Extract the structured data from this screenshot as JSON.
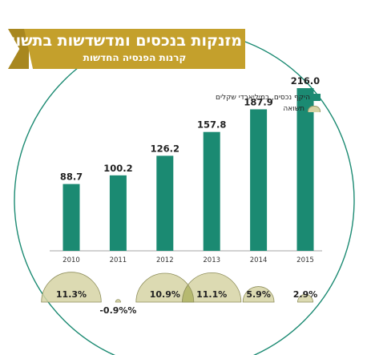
{
  "title": "מזנקות בנכסים ומדשדשות בתשואות",
  "subtitle": "קרנות הפנסיה החדשות",
  "legend": {
    "assets_label": "היקף נכסים, במיליארדי שקלים",
    "return_label": "תשואה"
  },
  "colors": {
    "bar": "#1b8a72",
    "banner": "#c4a02c",
    "circle": "#1b8a72",
    "bubble_fill": "#d6d3a4",
    "bubble_overlap": "#b2b66a"
  },
  "chart_data": {
    "type": "bar",
    "categories": [
      "2010",
      "2011",
      "2012",
      "2013",
      "2014",
      "2015"
    ],
    "series": [
      {
        "name": "היקף נכסים, במיליארדי שקלים",
        "values": [
          88.7,
          100.2,
          126.2,
          157.8,
          187.9,
          216.0
        ],
        "labels": [
          "88.7",
          "100.2",
          "126.2",
          "157.8",
          "187.9",
          "216.0"
        ]
      },
      {
        "name": "תשואה",
        "values": [
          11.3,
          -0.9,
          10.9,
          11.1,
          5.9,
          2.9
        ],
        "labels": [
          "11.3%",
          "-0.9%%",
          "10.9%",
          "11.1%",
          "5.9%",
          "2.9%"
        ]
      }
    ],
    "ylim": [
      0,
      216
    ],
    "grid": false
  }
}
